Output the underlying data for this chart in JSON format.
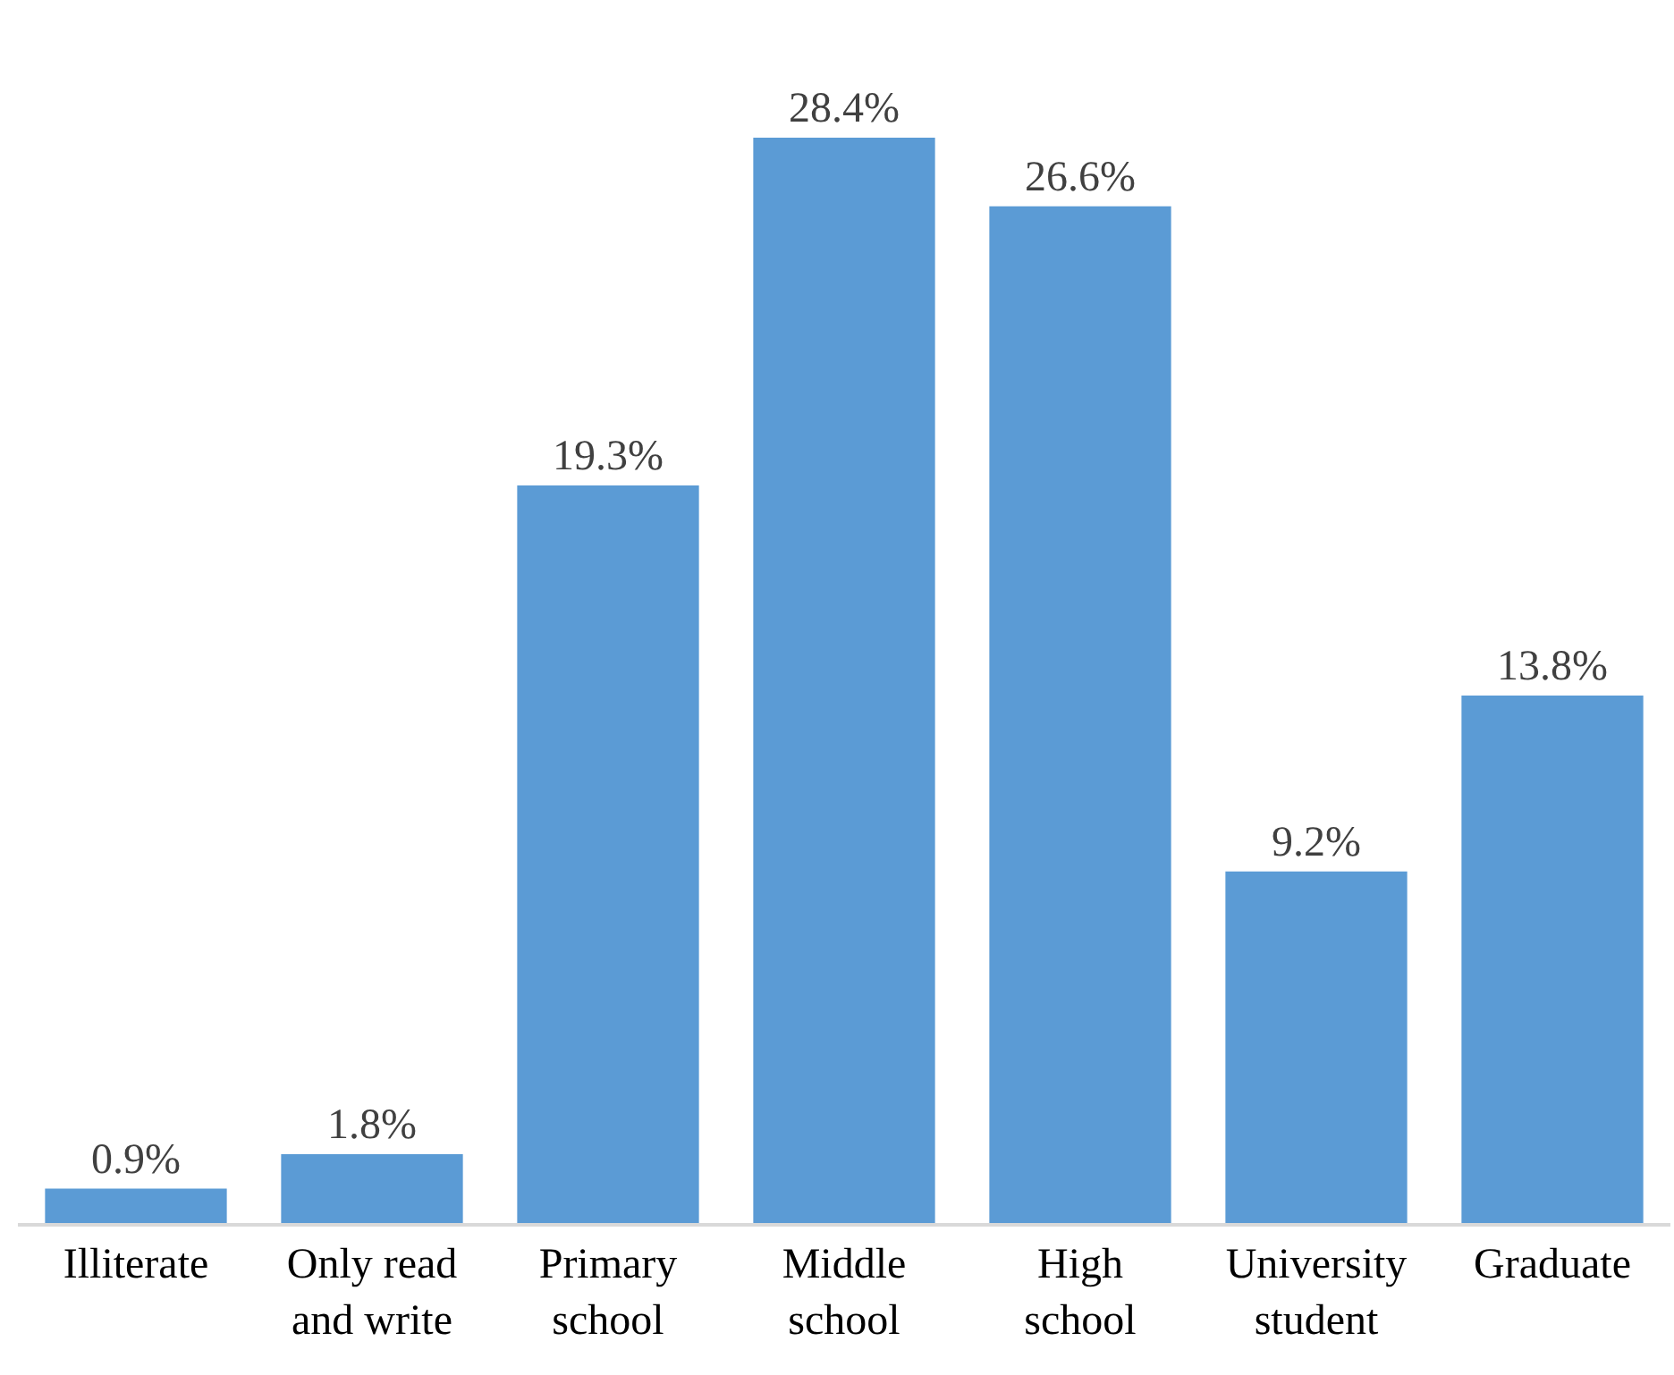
{
  "chart_data": {
    "type": "bar",
    "categories": [
      "Illiterate",
      "Only read and write",
      "Primary school",
      "Middle school",
      "High school",
      "University student",
      "Graduate"
    ],
    "values": [
      0.9,
      1.8,
      19.3,
      28.4,
      26.6,
      9.2,
      13.8
    ],
    "value_labels": [
      "0.9%",
      "1.8%",
      "19.3%",
      "28.4%",
      "26.6%",
      "9.2%",
      "13.8%"
    ],
    "color": "#5b9bd5"
  }
}
